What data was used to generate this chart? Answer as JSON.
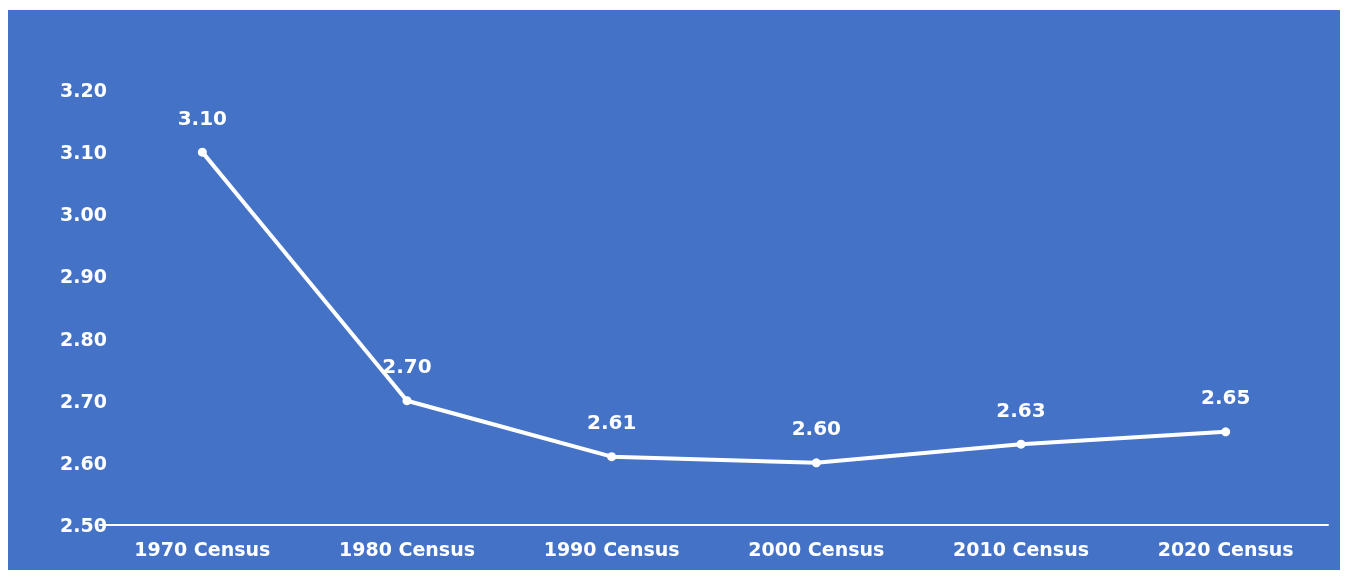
{
  "chart_data": {
    "type": "line",
    "categories": [
      "1970 Census",
      "1980 Census",
      "1990 Census",
      "2000 Census",
      "2010 Census",
      "2020 Census"
    ],
    "series": [
      {
        "color": "#ffffff",
        "values": [
          3.1,
          2.7,
          2.61,
          2.6,
          2.63,
          2.65
        ],
        "value_labels": [
          "3.10",
          "2.70",
          "2.61",
          "2.60",
          "2.63",
          "2.65"
        ]
      }
    ],
    "ylim": [
      2.5,
      3.2
    ],
    "yticks": [
      {
        "value": 2.5,
        "label": "2.50"
      },
      {
        "value": 2.6,
        "label": "2.60"
      },
      {
        "value": 2.7,
        "label": "2.70"
      },
      {
        "value": 2.8,
        "label": "2.80"
      },
      {
        "value": 2.9,
        "label": "2.90"
      },
      {
        "value": 3.0,
        "label": "3.00"
      },
      {
        "value": 3.1,
        "label": "3.10"
      },
      {
        "value": 3.2,
        "label": "3.20"
      }
    ],
    "grid": false,
    "marker": "circle",
    "line_style": "solid"
  }
}
